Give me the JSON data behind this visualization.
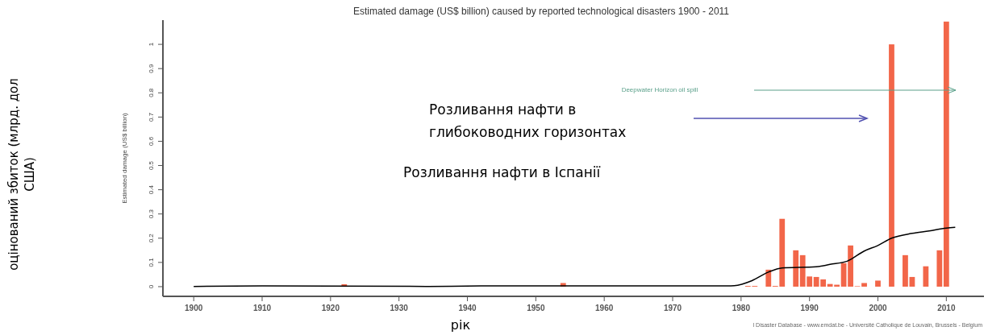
{
  "chart_data": {
    "type": "bar",
    "title": "Estimated damage (US$ billion) caused by reported technological disasters 1900 - 2011",
    "ylabel": "Estimated damage (US$ billion)",
    "xlabel": "рік",
    "xlim": [
      1895.5,
      2015.5
    ],
    "xticks": [
      1900,
      1910,
      1920,
      1930,
      1940,
      1950,
      1960,
      1970,
      1980,
      1990,
      2000,
      2010
    ],
    "ylim": [
      -0.04,
      1.1
    ],
    "yticks": [
      0,
      0.1,
      0.2,
      0.3,
      0.4,
      0.5,
      0.6,
      0.7,
      0.8,
      0.9,
      1
    ],
    "grid": false,
    "series": [
      {
        "color": "#f26649",
        "x": [
          1922,
          1954,
          1981,
          1982,
          1984,
          1985,
          1986,
          1988,
          1989,
          1990,
          1991,
          1992,
          1993,
          1994,
          1995,
          1996,
          1997,
          1998,
          2000,
          2002,
          2004,
          2005,
          2007,
          2009,
          2010
        ],
        "values": [
          0.01,
          0.015,
          0.003,
          0.003,
          0.07,
          0.003,
          0.28,
          0.15,
          0.13,
          0.042,
          0.04,
          0.03,
          0.011,
          0.008,
          0.097,
          0.17,
          0.002,
          0.015,
          0.025,
          1.0,
          0.13,
          0.04,
          0.084,
          0.15,
          1.094
        ]
      },
      {
        "type": "line",
        "color": "#000000",
        "x": [
          1900,
          1910,
          1934,
          1942,
          1978,
          1979,
          1981.6,
          1984,
          1986,
          1991,
          1993,
          1995.5,
          1998,
          2000,
          2002,
          2005,
          2007.5,
          2010,
          2011.3
        ],
        "values": [
          0.001,
          0.003,
          0.001,
          0.003,
          0.003,
          0.004,
          0.025,
          0.06,
          0.077,
          0.082,
          0.092,
          0.105,
          0.147,
          0.17,
          0.2,
          0.22,
          0.23,
          0.242,
          0.245
        ]
      }
    ],
    "annotations": [
      "Deepwater Horizon oil spill",
      "Розливання нафти в глибоководних горизонтах",
      "Розливання нафти в Іспанії",
      "оцінований збиток (млрд. дол США)",
      "l Disaster Database - www.emdat.be - Université Catholique de Louvain, Brussels - Belgium"
    ]
  }
}
